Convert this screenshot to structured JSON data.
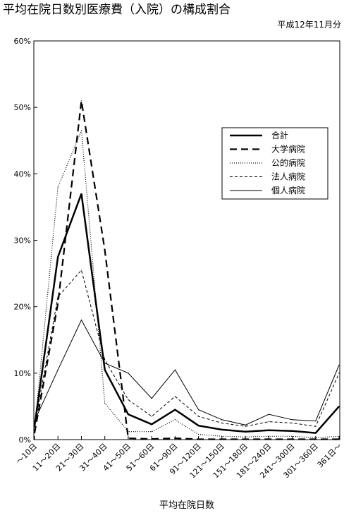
{
  "chart_data": {
    "type": "line",
    "title": "平均在院日数別医療費（入院）の構成割合",
    "subtitle": "平成12年11月分",
    "xlabel": "平均在院日数",
    "ylabel": "",
    "ylim": [
      0,
      60
    ],
    "y_ticks": [
      "0%",
      "10%",
      "20%",
      "30%",
      "40%",
      "50%",
      "60%"
    ],
    "grid": false,
    "legend_position": "right",
    "categories": [
      "～10日",
      "11～20日",
      "21～30日",
      "31～40日",
      "41～50日",
      "51～60日",
      "61～90日",
      "91～120日",
      "121～150日",
      "151～180日",
      "181～240日",
      "241～300日",
      "301～360日",
      "361日～"
    ],
    "series": [
      {
        "name": "合計",
        "style": "thick-solid",
        "values": [
          2.0,
          27.5,
          37.0,
          10.5,
          3.8,
          2.3,
          4.5,
          2.1,
          1.5,
          1.2,
          1.4,
          1.3,
          1.0,
          5.0
        ]
      },
      {
        "name": "大学病院",
        "style": "thick-dash",
        "values": [
          1.0,
          20.5,
          51.0,
          28.5,
          0.2,
          0.1,
          0.2,
          0.05,
          0.05,
          0.05,
          0.05,
          0.05,
          0.05,
          0.05
        ]
      },
      {
        "name": "公的病院",
        "style": "dotted",
        "values": [
          1.5,
          38.0,
          46.5,
          5.5,
          1.2,
          1.2,
          3.0,
          0.8,
          0.5,
          0.4,
          0.5,
          0.5,
          0.3,
          0.5
        ]
      },
      {
        "name": "法人病院",
        "style": "thin-dash",
        "values": [
          2.0,
          21.5,
          25.5,
          12.0,
          6.0,
          3.5,
          6.5,
          3.5,
          2.5,
          2.0,
          2.7,
          2.5,
          2.0,
          10.0
        ]
      },
      {
        "name": "個人病院",
        "style": "thin-solid",
        "values": [
          2.8,
          10.5,
          18.0,
          11.5,
          10.0,
          6.2,
          10.5,
          4.5,
          3.0,
          2.2,
          3.8,
          3.0,
          2.8,
          11.2
        ]
      }
    ]
  }
}
